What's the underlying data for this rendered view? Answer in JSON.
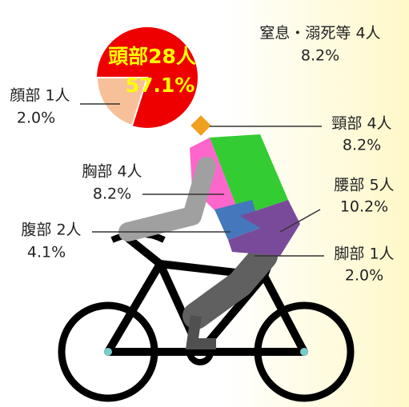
{
  "labels": [
    {
      "part": "窒息・溺死等 4人",
      "percent": "8.2%"
    },
    {
      "part": "顔部 1人",
      "percent": "2.0%"
    },
    {
      "part": "頭部28人",
      "percent": "57.1%"
    },
    {
      "part": "頸部 4人",
      "percent": "8.2%"
    },
    {
      "part": "胸部 4人",
      "percent": "8.2%"
    },
    {
      "part": "腰部 5人",
      "percent": "10.2%"
    },
    {
      "part": "腹部 2人",
      "percent": "4.1%"
    },
    {
      "part": "脚部 1人",
      "percent": "2.0%"
    }
  ]
}
